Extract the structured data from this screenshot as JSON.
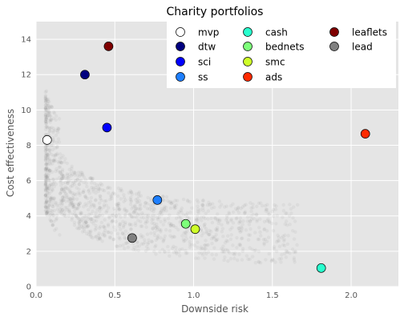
{
  "chart_data": {
    "type": "scatter",
    "title": "Charity portfolios",
    "xlabel": "Downside risk",
    "ylabel": "Cost effectiveness",
    "xlim": [
      0.0,
      2.3
    ],
    "ylim": [
      0,
      15
    ],
    "xticks": [
      "0.0",
      "0.5",
      "1.0",
      "1.5",
      "2.0"
    ],
    "xtick_values": [
      0.0,
      0.5,
      1.0,
      1.5,
      2.0
    ],
    "yticks": [
      "0",
      "2",
      "4",
      "6",
      "8",
      "10",
      "12",
      "14"
    ],
    "ytick_values": [
      0,
      2,
      4,
      6,
      8,
      10,
      12,
      14
    ],
    "grid": true,
    "legend_position": "top-right",
    "legend_columns": 3,
    "background_color": "#e5e5e5",
    "series": [
      {
        "name": "mvp",
        "color": "#ffffff",
        "x": 0.07,
        "y": 8.3
      },
      {
        "name": "dtw",
        "color": "#00007f",
        "x": 0.31,
        "y": 12.0
      },
      {
        "name": "sci",
        "color": "#0000ff",
        "x": 0.45,
        "y": 9.0
      },
      {
        "name": "ss",
        "color": "#1e7fff",
        "x": 0.77,
        "y": 4.9
      },
      {
        "name": "cash",
        "color": "#29ffce",
        "x": 1.81,
        "y": 1.05
      },
      {
        "name": "bednets",
        "color": "#7dff7a",
        "x": 0.95,
        "y": 3.55
      },
      {
        "name": "smc",
        "color": "#ceff29",
        "x": 1.01,
        "y": 3.25
      },
      {
        "name": "ads",
        "color": "#ff2a00",
        "x": 2.09,
        "y": 8.65
      },
      {
        "name": "leaflets",
        "color": "#7f0000",
        "x": 0.46,
        "y": 13.6
      },
      {
        "name": "lead",
        "color": "#808080",
        "x": 0.61,
        "y": 2.75
      }
    ]
  }
}
